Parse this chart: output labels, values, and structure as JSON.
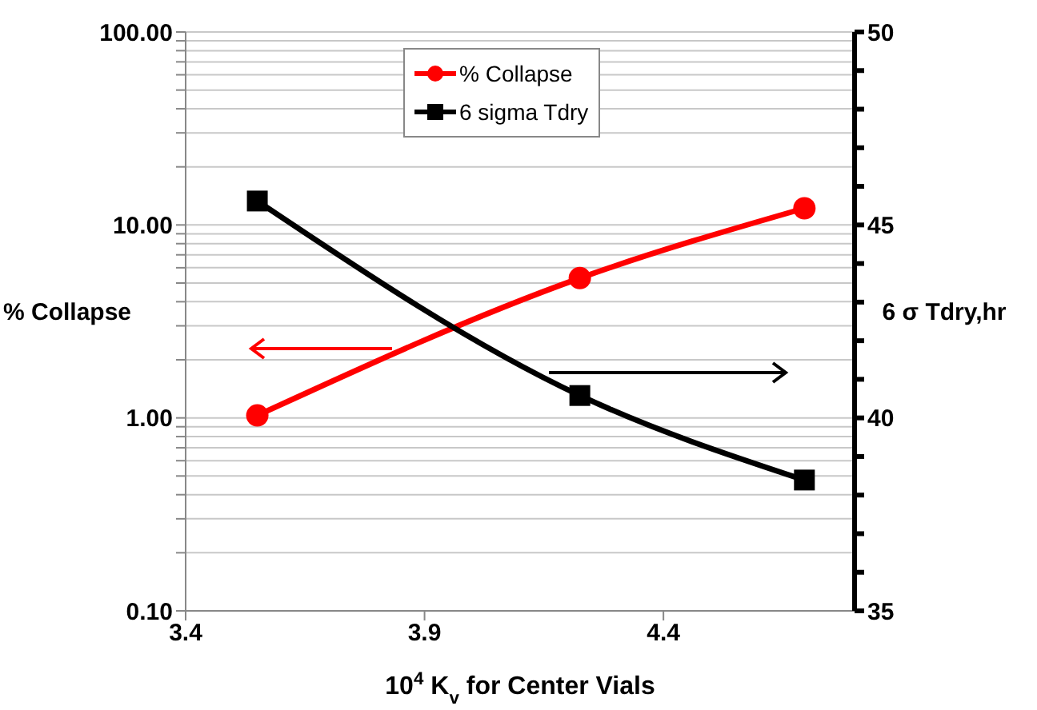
{
  "chart_data": {
    "type": "line",
    "xlabel": "10$^{4}$ K$_{v}$ for Center Vials",
    "ylabel": "% Collapse",
    "y2label": "6 σ Tdry,hr",
    "x": [
      3.55,
      4.225,
      4.695
    ],
    "series": [
      {
        "name": "% Collapse",
        "color": "#ff0000",
        "values": [
          1.03,
          5.3,
          12.2
        ],
        "marker": "circle"
      },
      {
        "name": "6 sigma Tdry",
        "color": "#000000",
        "values": [
          45.62,
          40.58,
          38.39
        ],
        "axis": "y2",
        "marker": "square"
      }
    ],
    "xlim": [
      3.4,
      4.8
    ],
    "xticks": [
      3.4,
      3.9,
      4.4
    ],
    "log": "y",
    "ylim": [
      0.1,
      100
    ],
    "yticks": [
      {
        "value": 0.1,
        "label": "0.10"
      },
      {
        "value": 0.2,
        "label": null
      },
      {
        "value": 0.3,
        "label": null
      },
      {
        "value": 0.4,
        "label": null
      },
      {
        "value": 0.5,
        "label": null
      },
      {
        "value": 0.6,
        "label": null
      },
      {
        "value": 0.7,
        "label": null
      },
      {
        "value": 0.8,
        "label": null
      },
      {
        "value": 0.9,
        "label": null
      },
      {
        "value": 1,
        "label": "1.00"
      },
      {
        "value": 2,
        "label": null
      },
      {
        "value": 3,
        "label": null
      },
      {
        "value": 4,
        "label": null
      },
      {
        "value": 5,
        "label": null
      },
      {
        "value": 6,
        "label": null
      },
      {
        "value": 7,
        "label": null
      },
      {
        "value": 8,
        "label": null
      },
      {
        "value": 9,
        "label": null
      },
      {
        "value": 10,
        "label": "10.00"
      },
      {
        "value": 20,
        "label": null
      },
      {
        "value": 30,
        "label": null
      },
      {
        "value": 40,
        "label": null
      },
      {
        "value": 50,
        "label": null
      },
      {
        "value": 60,
        "label": null
      },
      {
        "value": 70,
        "label": null
      },
      {
        "value": 80,
        "label": null
      },
      {
        "value": 90,
        "label": null
      },
      {
        "value": 100,
        "label": "100.00"
      }
    ],
    "y2lim": [
      35,
      50
    ],
    "y2ticks": [
      35,
      {
        "value": 36,
        "label": null
      },
      {
        "value": 37,
        "label": null
      },
      {
        "value": 38,
        "label": null
      },
      {
        "value": 39,
        "label": null
      },
      40,
      {
        "value": 41,
        "label": null
      },
      {
        "value": 42,
        "label": null
      },
      {
        "value": 43,
        "label": null
      },
      {
        "value": 44,
        "label": null
      },
      45,
      {
        "value": 46,
        "label": null
      },
      {
        "value": 47,
        "label": null
      },
      {
        "value": 48,
        "label": null
      },
      {
        "value": 49,
        "label": null
      },
      50
    ],
    "grid": "y",
    "legend": "top",
    "line_style": "solid"
  }
}
